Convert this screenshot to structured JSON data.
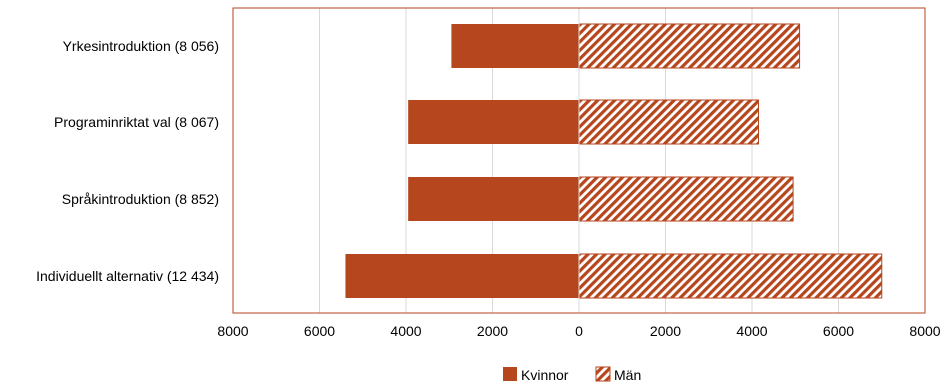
{
  "chart_data": {
    "type": "bar",
    "orientation": "horizontal",
    "layout": "diverging",
    "categories": [
      "Yrkesintroduktion (8 056)",
      "Programinriktat val (8 067)",
      "Språkintroduktion (8 852)",
      "Individuellt alternativ (12 434)"
    ],
    "series": [
      {
        "name": "Kvinnor",
        "values": [
          2950,
          3950,
          3950,
          5400
        ],
        "direction": "left",
        "fill": "solid",
        "color": "#b5461d"
      },
      {
        "name": "Män",
        "values": [
          5100,
          4150,
          4950,
          7000
        ],
        "direction": "right",
        "fill": "hatched",
        "color": "#b5461d"
      }
    ],
    "x_ticks": [
      "8000",
      "6000",
      "4000",
      "2000",
      "0",
      "2000",
      "4000",
      "6000",
      "8000"
    ],
    "xlim": [
      -8000,
      8000
    ],
    "grid": true,
    "legend": "bottom-center",
    "colors": {
      "bar": "#b5461d",
      "frame": "#b5461d",
      "grid": "#d9d9d9"
    }
  }
}
